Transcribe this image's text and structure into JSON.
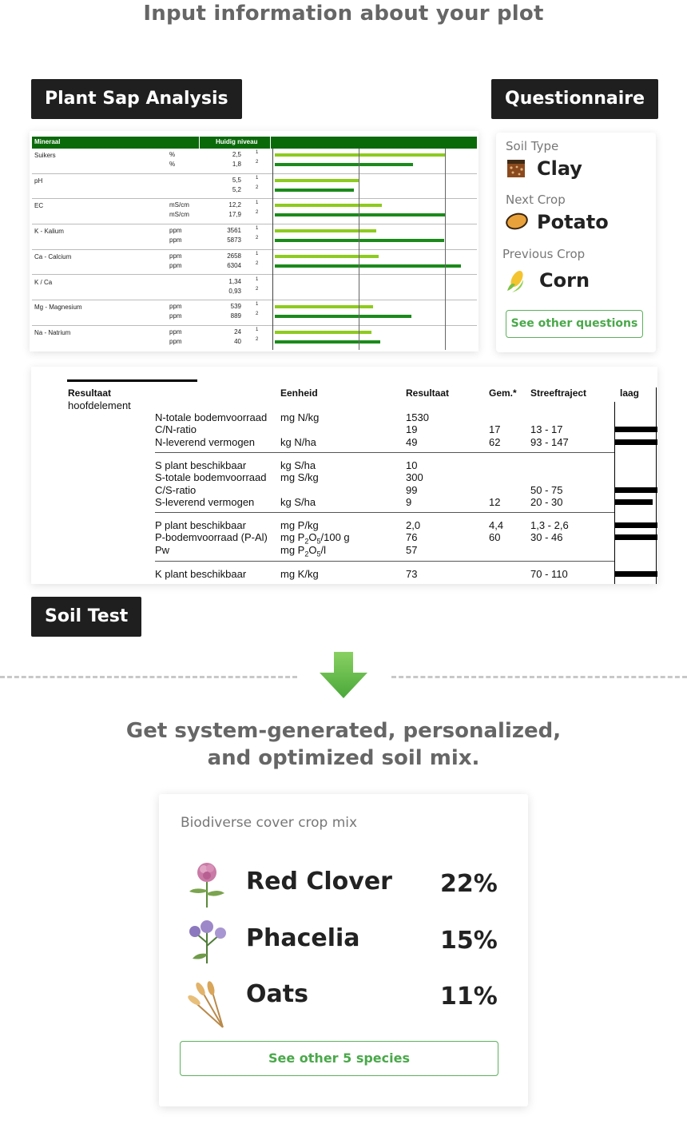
{
  "headings": {
    "top": "Input information about your plot",
    "bottom_line1": "Get system-generated, personalized,",
    "bottom_line2": "and optimized soil mix."
  },
  "labels": {
    "plant_sap": "Plant Sap Analysis",
    "questionnaire": "Questionnaire",
    "soil_test": "Soil Test"
  },
  "plant_sap_table": {
    "headers": [
      "Mineraal",
      "Huidig niveau"
    ],
    "rows": [
      {
        "name": "Suikers",
        "units": [
          "%",
          "%"
        ],
        "values": [
          "2,5",
          "1,8"
        ],
        "sup": [
          "1",
          "2"
        ]
      },
      {
        "name": "pH",
        "units": [
          "",
          ""
        ],
        "values": [
          "5,5",
          "5,2"
        ],
        "sup": [
          "1",
          "2"
        ]
      },
      {
        "name": "EC",
        "units": [
          "mS/cm",
          "mS/cm"
        ],
        "values": [
          "12,2",
          "17,9"
        ],
        "sup": [
          "1",
          "2"
        ]
      },
      {
        "name": "K - Kalium",
        "units": [
          "ppm",
          "ppm"
        ],
        "values": [
          "3561",
          "5873"
        ],
        "sup": [
          "1",
          "2"
        ]
      },
      {
        "name": "Ca - Calcium",
        "units": [
          "ppm",
          "ppm"
        ],
        "values": [
          "2658",
          "6304"
        ],
        "sup": [
          "1",
          "2"
        ]
      },
      {
        "name": "K / Ca",
        "units": [
          "",
          ""
        ],
        "values": [
          "1,34",
          "0,93"
        ],
        "sup": [
          "1",
          "2"
        ]
      },
      {
        "name": "Mg - Magnesium",
        "units": [
          "ppm",
          "ppm"
        ],
        "values": [
          "539",
          "889"
        ],
        "sup": [
          "1",
          "2"
        ]
      },
      {
        "name": "Na - Natrium",
        "units": [
          "ppm",
          "ppm"
        ],
        "values": [
          "24",
          "40"
        ],
        "sup": [
          "1",
          "2"
        ]
      }
    ],
    "bar_levels": [
      [
        0.99,
        0.8
      ],
      [
        0.49,
        0.46
      ],
      [
        0.62,
        0.99
      ],
      [
        0.59,
        0.98
      ],
      [
        0.6,
        1.08
      ],
      [
        0.0,
        0.0
      ],
      [
        0.57,
        0.79
      ],
      [
        0.56,
        0.61
      ]
    ],
    "colors": {
      "header": "#0a6a0a",
      "light_bar": "#8ecb1f",
      "dark_bar": "#1b8a1b"
    }
  },
  "questionnaire": {
    "soil_type_label": "Soil Type",
    "soil_type_value": "Clay",
    "next_crop_label": "Next Crop",
    "next_crop_value": "Potato",
    "previous_crop_label": "Previous Crop",
    "previous_crop_value": "Corn",
    "button": "See other questions",
    "icons": [
      "soil-icon",
      "potato-icon",
      "corn-icon"
    ]
  },
  "soil_test": {
    "headers": [
      "Resultaat",
      "Eenheid",
      "Resultaat",
      "Gem.*",
      "Streeftraject",
      "laag"
    ],
    "subheader": "hoofdelement",
    "groups": [
      [
        {
          "name": "N-totale bodemvoorraad",
          "unit": "mg N/kg",
          "result": "1530",
          "avg": "",
          "target": ""
        },
        {
          "name": "C/N-ratio",
          "unit": "",
          "result": "19",
          "avg": "17",
          "target": "13 - 17"
        },
        {
          "name": "N-leverend vermogen",
          "unit": "kg N/ha",
          "result": "49",
          "avg": "62",
          "target": "93 - 147"
        }
      ],
      [
        {
          "name": "S plant beschikbaar",
          "unit": "kg S/ha",
          "result": "10",
          "avg": "",
          "target": ""
        },
        {
          "name": "S-totale bodemvoorraad",
          "unit": "mg S/kg",
          "result": "300",
          "avg": "",
          "target": ""
        },
        {
          "name": "C/S-ratio",
          "unit": "",
          "result": "99",
          "avg": "",
          "target": "50 - 75"
        },
        {
          "name": "S-leverend vermogen",
          "unit": "kg S/ha",
          "result": "9",
          "avg": "12",
          "target": "20 - 30"
        }
      ],
      [
        {
          "name": "P plant beschikbaar",
          "unit": "mg P/kg",
          "result": "2,0",
          "avg": "4,4",
          "target": "1,3 - 2,6"
        },
        {
          "name": "P-bodemvoorraad (P-Al)",
          "unit": "mg P2O5/100 g",
          "result": "76",
          "avg": "60",
          "target": "30 - 46"
        },
        {
          "name": "Pw",
          "unit": "mg P2O5/l",
          "result": "57",
          "avg": "",
          "target": ""
        }
      ],
      [
        {
          "name": "K plant beschikbaar",
          "unit": "mg K/kg",
          "result": "73",
          "avg": "",
          "target": "70 - 110"
        }
      ]
    ]
  },
  "mix": {
    "title": "Biodiverse cover crop mix",
    "items": [
      {
        "name": "Red Clover",
        "pct": "22%",
        "icon": "red-clover-icon"
      },
      {
        "name": "Phacelia",
        "pct": "15%",
        "icon": "phacelia-icon"
      },
      {
        "name": "Oats",
        "pct": "11%",
        "icon": "oats-icon"
      }
    ],
    "button": "See other 5 species"
  },
  "colors": {
    "accent_green": "#4aa84a",
    "arrow_green": "#6cc04a",
    "dark_label": "#1f1f1f"
  }
}
